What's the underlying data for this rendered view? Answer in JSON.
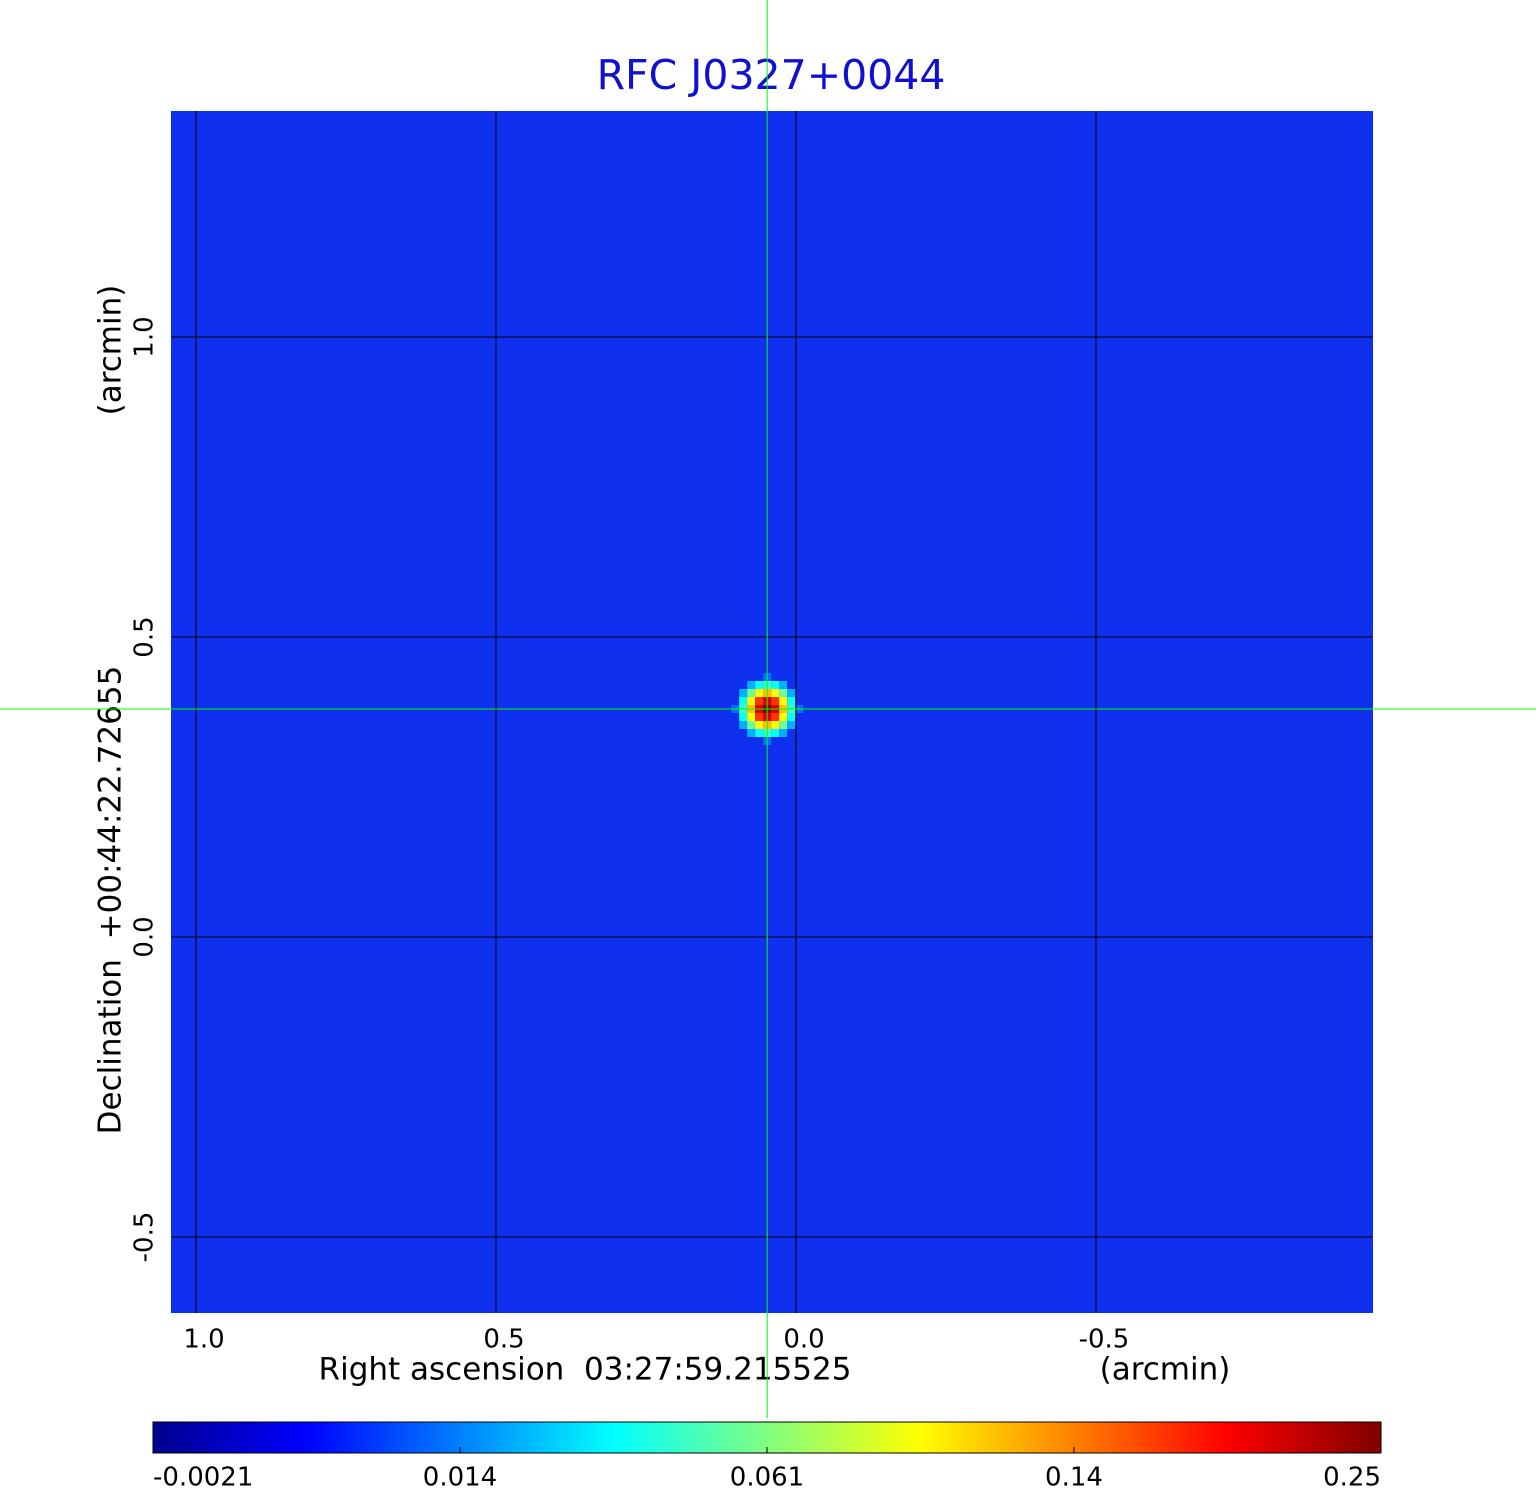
{
  "chart_data": {
    "type": "image",
    "title": "RFC J0327+0044",
    "x_label": "Right ascension  03:27:59.215525",
    "x_unit": "(arcmin)",
    "y_label": "Declination  +00:44:22.72655",
    "y_unit": "(arcmin)",
    "xlim": [
      1.0417,
      -0.9617
    ],
    "ylim": [
      -0.6267,
      1.3767
    ],
    "xticks": [
      {
        "value": 1,
        "label": "1.0"
      },
      0.5,
      {
        "value": 0,
        "label": "0.0"
      },
      -0.5
    ],
    "yticks": [
      -0.5,
      {
        "value": 0,
        "label": "0.0"
      },
      0.5,
      {
        "value": 1,
        "label": "1.0"
      }
    ],
    "grid": true,
    "grid_color": "#000000",
    "background_color": "#1030f0",
    "source": {
      "x": 0.048,
      "y": 0.38,
      "peak": 0.25
    },
    "crosshair": {
      "x": 0.048,
      "y": 0.38,
      "color": "#00ff00"
    },
    "colorbar": {
      "ticks": [
        -0.0021,
        0.014,
        0.061,
        0.14,
        0.25
      ],
      "colors": [
        "#00008f",
        "#0000ff",
        "#0080ff",
        "#00ffff",
        "#80ff80",
        "#ffff00",
        "#ff8000",
        "#ff0000",
        "#800000"
      ]
    }
  }
}
